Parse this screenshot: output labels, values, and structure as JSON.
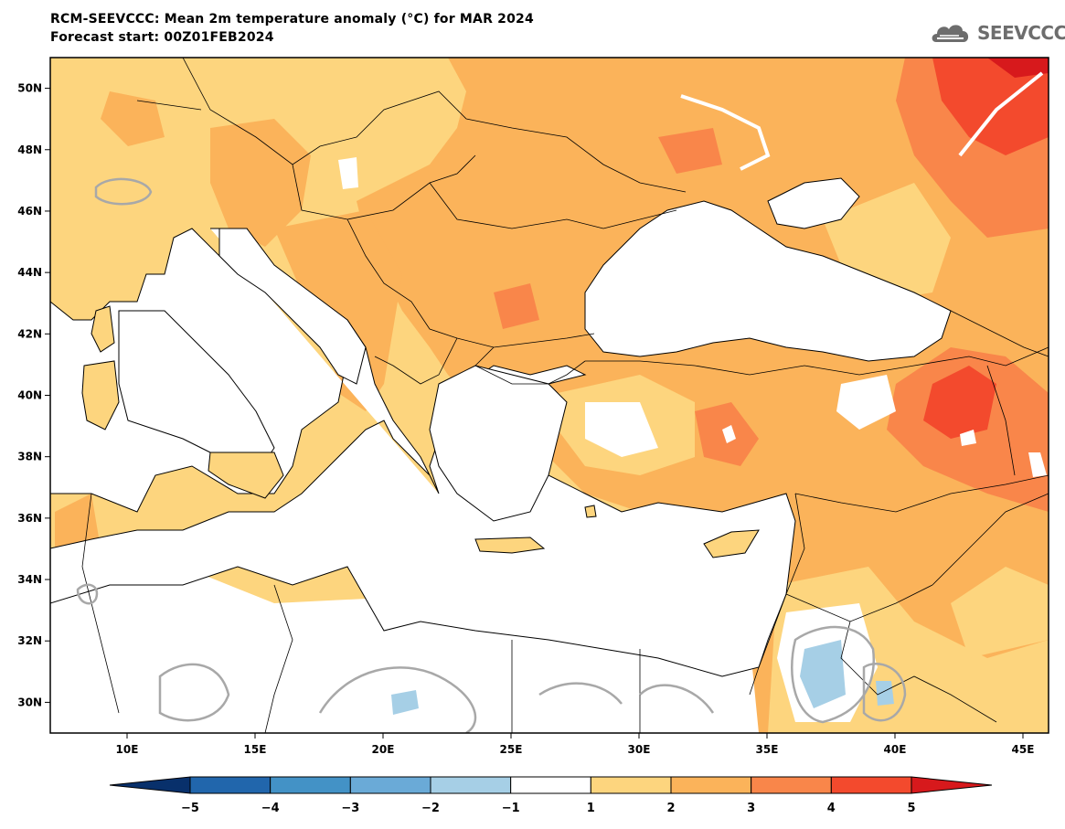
{
  "title": {
    "line1": "RCM-SEEVCCC: Mean 2m temperature anomaly (°C) for MAR 2024",
    "line2": "Forecast start: 00Z01FEB2024"
  },
  "logo": {
    "text": "SEEVCCC",
    "icon": "cloud-icon"
  },
  "map": {
    "lat_labels": [
      "50N",
      "48N",
      "46N",
      "44N",
      "42N",
      "40N",
      "38N",
      "36N",
      "34N",
      "32N",
      "30N"
    ],
    "lon_labels": [
      "10E",
      "15E",
      "20E",
      "25E",
      "30E",
      "35E",
      "40E",
      "45E"
    ],
    "lat_values": [
      50,
      48,
      46,
      44,
      42,
      40,
      38,
      36,
      34,
      32,
      30
    ],
    "lon_values": [
      10,
      15,
      20,
      25,
      30,
      35,
      40,
      45
    ],
    "extent": {
      "lon_min": 7,
      "lon_max": 46,
      "lat_min": 29,
      "lat_max": 51
    }
  },
  "colorbar": {
    "labels": [
      "−5",
      "−4",
      "−3",
      "−2",
      "−1",
      "1",
      "2",
      "3",
      "4",
      "5"
    ],
    "bins": [
      {
        "color": "#08306b"
      },
      {
        "color": "#2166ac"
      },
      {
        "color": "#4392c6"
      },
      {
        "color": "#6aaad7"
      },
      {
        "color": "#a6cfe6"
      },
      {
        "color": "#ffffff"
      },
      {
        "color": "#fdd57e"
      },
      {
        "color": "#fbb35a"
      },
      {
        "color": "#f9864a"
      },
      {
        "color": "#f34a2d"
      },
      {
        "color": "#d7191c"
      }
    ]
  }
}
